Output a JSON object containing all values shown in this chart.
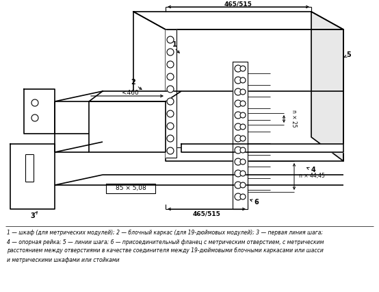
{
  "background_color": "#ffffff",
  "line_color": "#000000",
  "caption_lines": [
    "1 — шкаф (для метрических модулей); 2 — блочный каркас (для 19-дюймовых модулей); 3 — первая линия шага;",
    "4 — опорная рейка; 5 — линии шага; 6 — присоединительный фланец с метрическим отверстием, с метрическим",
    "расстоянием между отверстиями в качестве соединителя между 19-дюймовыми блочными каркасами или шасси",
    "и метрическими шкафами или стойками"
  ],
  "dim_top": "465/515",
  "dim_bottom": "465/515",
  "dim_inner": "<460",
  "dim_step_box": "85 × 5,08",
  "dim_right_top": "n × 25",
  "dim_right_bottom": "n × 44,45",
  "label_1": "1",
  "label_2": "2",
  "label_3": "3",
  "label_4": "4",
  "label_5": "5",
  "label_6": "6"
}
